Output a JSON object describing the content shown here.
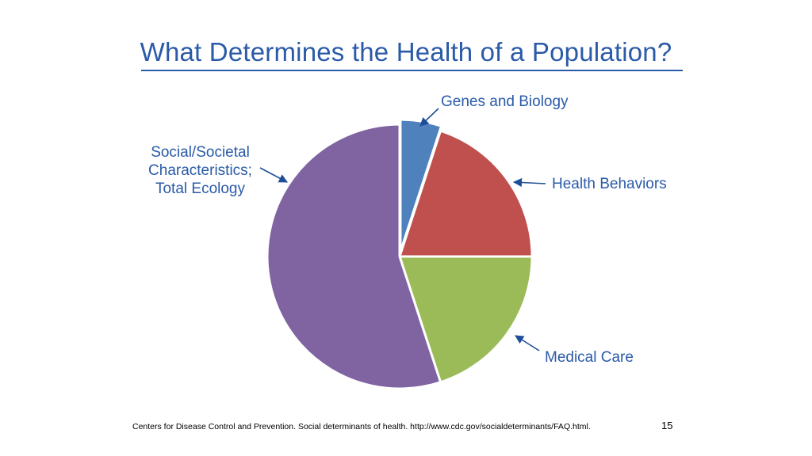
{
  "slide": {
    "title": "What Determines the Health of a Population?",
    "citation": "Centers for Disease Control and Prevention. Social determinants of health. http://www.cdc.gov/socialdeterminants/FAQ.html.",
    "page_number": "15"
  },
  "colors": {
    "title": "#2a5aa8",
    "genes": "#4f81bd",
    "behaviors": "#c0504d",
    "medical": "#9bbb59",
    "social": "#8064a2"
  },
  "chart_data": {
    "type": "pie",
    "title": "",
    "start": "12 o'clock",
    "direction": "clockwise",
    "slices": [
      {
        "label": "Genes and Biology",
        "value": 5,
        "color": "#4f81bd",
        "label_lines": [
          "Genes and Biology"
        ]
      },
      {
        "label": "Health Behaviors",
        "value": 20,
        "color": "#c0504d",
        "label_lines": [
          "Health Behaviors"
        ]
      },
      {
        "label": "Medical Care",
        "value": 20,
        "color": "#9bbb59",
        "label_lines": [
          "Medical Care"
        ]
      },
      {
        "label": "Social/Societal Characteristics; Total Ecology",
        "value": 55,
        "color": "#8064a2",
        "label_lines": [
          "Social/Societal",
          "Characteristics;",
          "Total Ecology"
        ]
      }
    ]
  }
}
